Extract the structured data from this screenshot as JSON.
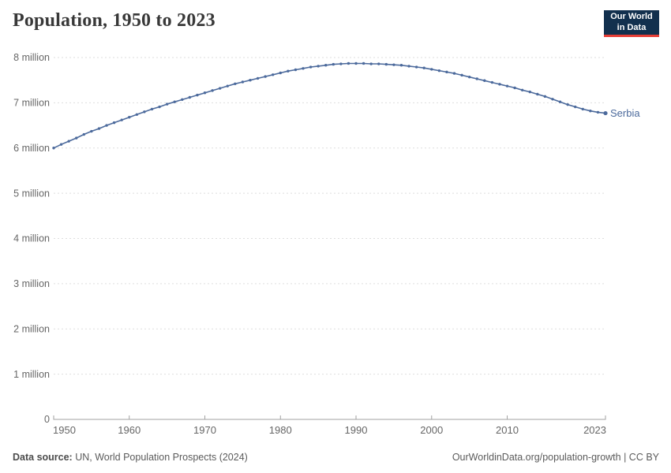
{
  "header": {
    "title": "Population, 1950 to 2023",
    "logo": {
      "line1": "Our World",
      "line2": "in Data",
      "bg_color": "#12304E",
      "accent_color": "#E63E36"
    }
  },
  "chart_data": {
    "type": "line",
    "title": "Population, 1950 to 2023",
    "unit": "million people",
    "x_range": [
      1950,
      2023
    ],
    "x": [
      1950,
      1951,
      1952,
      1953,
      1954,
      1955,
      1956,
      1957,
      1958,
      1959,
      1960,
      1961,
      1962,
      1963,
      1964,
      1965,
      1966,
      1967,
      1968,
      1969,
      1970,
      1971,
      1972,
      1973,
      1974,
      1975,
      1976,
      1977,
      1978,
      1979,
      1980,
      1981,
      1982,
      1983,
      1984,
      1985,
      1986,
      1987,
      1988,
      1989,
      1990,
      1991,
      1992,
      1993,
      1994,
      1995,
      1996,
      1997,
      1998,
      1999,
      2000,
      2001,
      2002,
      2003,
      2004,
      2005,
      2006,
      2007,
      2008,
      2009,
      2010,
      2011,
      2012,
      2013,
      2014,
      2015,
      2016,
      2017,
      2018,
      2019,
      2020,
      2021,
      2022,
      2023
    ],
    "series": [
      {
        "name": "Serbia",
        "color": "#4C6A9C",
        "values": [
          6.0,
          6.08,
          6.15,
          6.22,
          6.3,
          6.37,
          6.43,
          6.5,
          6.56,
          6.62,
          6.68,
          6.74,
          6.8,
          6.86,
          6.91,
          6.97,
          7.02,
          7.07,
          7.12,
          7.17,
          7.22,
          7.27,
          7.32,
          7.37,
          7.42,
          7.46,
          7.5,
          7.54,
          7.58,
          7.62,
          7.66,
          7.7,
          7.73,
          7.76,
          7.79,
          7.81,
          7.83,
          7.85,
          7.86,
          7.87,
          7.87,
          7.87,
          7.86,
          7.86,
          7.85,
          7.84,
          7.83,
          7.81,
          7.79,
          7.77,
          7.74,
          7.71,
          7.68,
          7.65,
          7.61,
          7.57,
          7.53,
          7.49,
          7.45,
          7.41,
          7.37,
          7.33,
          7.28,
          7.24,
          7.19,
          7.14,
          7.08,
          7.02,
          6.96,
          6.91,
          6.86,
          6.82,
          6.79,
          6.77
        ]
      }
    ],
    "ylim": [
      0,
      8
    ],
    "yticks": [
      {
        "value": 0,
        "label": "0"
      },
      {
        "value": 1,
        "label": "1 million"
      },
      {
        "value": 2,
        "label": "2 million"
      },
      {
        "value": 3,
        "label": "3 million"
      },
      {
        "value": 4,
        "label": "4 million"
      },
      {
        "value": 5,
        "label": "5 million"
      },
      {
        "value": 6,
        "label": "6 million"
      },
      {
        "value": 7,
        "label": "7 million"
      },
      {
        "value": 8,
        "label": "8 million"
      }
    ],
    "xticks": [
      1950,
      1960,
      1970,
      1980,
      1990,
      2000,
      2010,
      2023
    ],
    "grid": "horizontal-dashed",
    "legend_position": "end-of-line-label",
    "colors": {
      "line": "#4C6A9C",
      "gridline": "#dedede",
      "axis": "#a2a2a2",
      "tick_label": "#666666"
    }
  },
  "footer": {
    "source_label": "Data source:",
    "source_text": " UN, World Population Prospects (2024)",
    "link_text": "OurWorldinData.org/population-growth | CC BY"
  }
}
